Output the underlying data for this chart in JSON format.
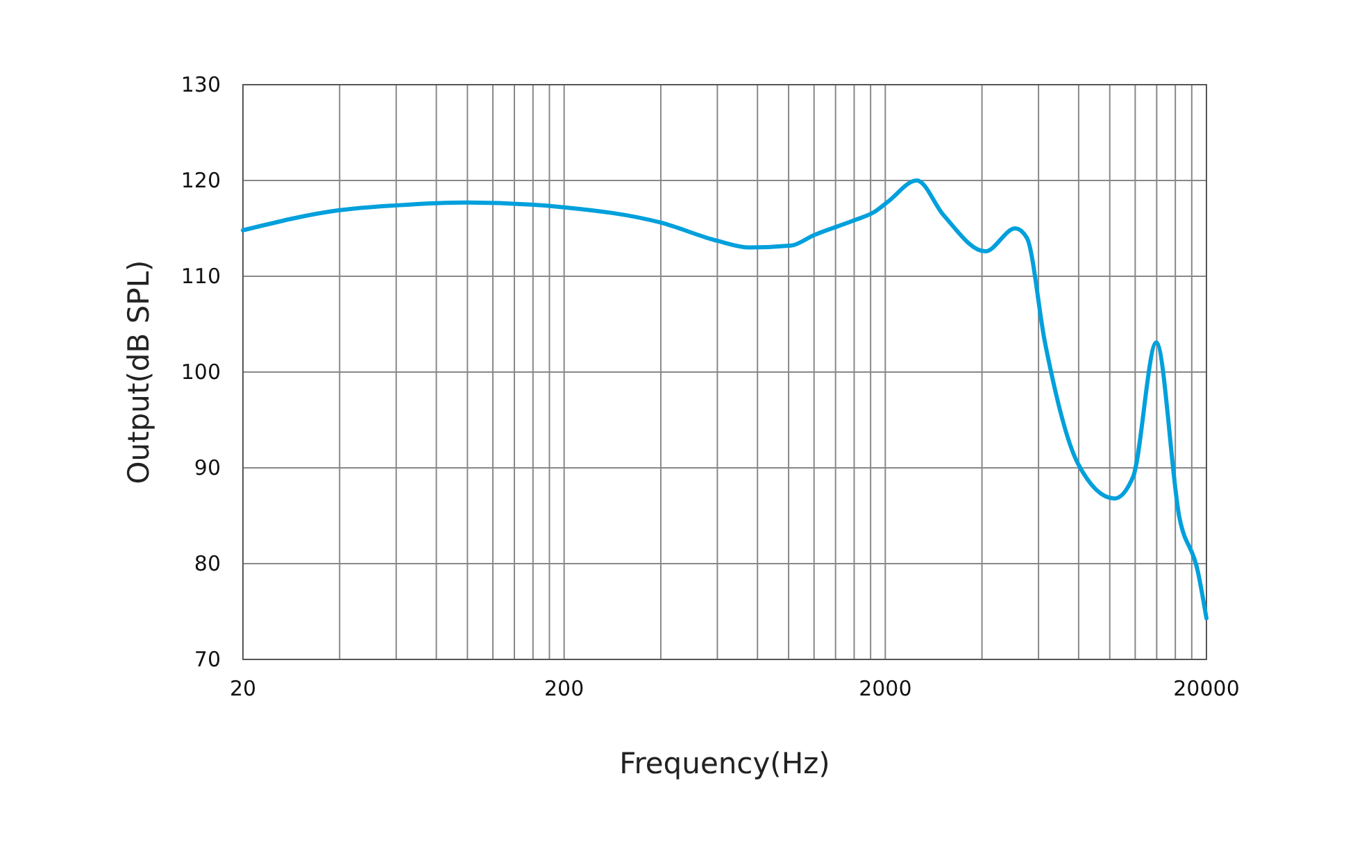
{
  "chart_data": {
    "type": "line",
    "xlabel": "Frequency(Hz)",
    "ylabel": "Output(dB SPL)",
    "log": "x",
    "grid": true,
    "xlim": [
      20,
      20000
    ],
    "xticks": [
      20,
      {
        "value": 40,
        "label": null
      },
      {
        "value": 60,
        "label": null
      },
      {
        "value": 80,
        "label": null
      },
      {
        "value": 100,
        "label": null
      },
      {
        "value": 120,
        "label": null
      },
      {
        "value": 140,
        "label": null
      },
      {
        "value": 160,
        "label": null
      },
      {
        "value": 180,
        "label": null
      },
      200,
      {
        "value": 400,
        "label": null
      },
      {
        "value": 600,
        "label": null
      },
      {
        "value": 800,
        "label": null
      },
      {
        "value": 1000,
        "label": null
      },
      {
        "value": 1200,
        "label": null
      },
      {
        "value": 1400,
        "label": null
      },
      {
        "value": 1600,
        "label": null
      },
      {
        "value": 1800,
        "label": null
      },
      2000,
      {
        "value": 4000,
        "label": null
      },
      {
        "value": 6000,
        "label": null
      },
      {
        "value": 8000,
        "label": null
      },
      {
        "value": 10000,
        "label": null
      },
      {
        "value": 12000,
        "label": null
      },
      {
        "value": 14000,
        "label": null
      },
      {
        "value": 16000,
        "label": null
      },
      {
        "value": 18000,
        "label": null
      },
      20000
    ],
    "ylim": [
      70,
      130
    ],
    "yticks": [
      70,
      80,
      90,
      100,
      110,
      120,
      130
    ],
    "marker": "none",
    "line_style": "solid",
    "x": [
      20,
      40,
      60,
      100,
      200,
      400,
      600,
      755,
      1017,
      1200,
      1618,
      1846,
      2041,
      2507,
      3035,
      4094,
      5083,
      5520,
      6283,
      7945,
      10350,
      11830,
      13960,
      16480,
      18800,
      20000
    ],
    "series": [
      {
        "color": "#00a0dc",
        "values": [
          114.8,
          116.9,
          117.4,
          117.7,
          117.2,
          115.6,
          113.7,
          113.0,
          113.2,
          114.3,
          115.9,
          116.7,
          117.8,
          120.0,
          116.4,
          112.6,
          115.0,
          114.0,
          103.1,
          90.5,
          86.8,
          89.1,
          103.1,
          84.8,
          79.2,
          74.3
        ]
      }
    ]
  }
}
